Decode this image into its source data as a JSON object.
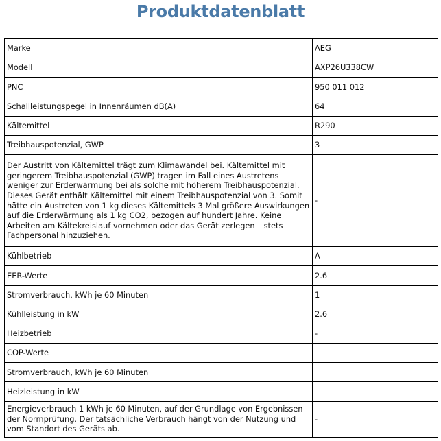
{
  "title": "Produktdatenblatt",
  "rows": [
    {
      "label": "Marke",
      "value": "AEG"
    },
    {
      "label": "Modell",
      "value": "AXP26U338CW"
    },
    {
      "label": "PNC",
      "value": "950 011 012"
    },
    {
      "label": "Schallleistungspegel in Innenräumen dB(A)",
      "value": "64"
    },
    {
      "label": "Kältemittel",
      "value": "R290"
    },
    {
      "label": "Treibhauspotenzial, GWP",
      "value": "3"
    },
    {
      "label": "Der Austritt von Kältemittel trägt zum Klimawandel bei. Kältemittel mit geringerem Treibhauspotenzial (GWP) tragen im Fall eines Austretens weniger zur Erderwärmung bei als solche mit höherem Treibhauspotenzial. Dieses Gerät enthält Kältemittel mit einem Treibhauspotenzial von 3. Somit hätte ein Austreten von 1 kg dieses Kältemittels 3 Mal größere Auswirkungen auf die Erderwärmung als 1 kg CO2, bezogen auf hundert Jahre. Keine Arbeiten am Kältekreislauf vornehmen oder das Gerät zerlegen – stets Fachpersonal hinzuziehen.",
      "value": "-"
    },
    {
      "label": "Kühlbetrieb",
      "value": "A"
    },
    {
      "label": "EER-Werte",
      "value": "2.6"
    },
    {
      "label": "Stromverbrauch, kWh je 60 Minuten",
      "value": "1"
    },
    {
      "label": "Kühlleistung in kW",
      "value": "2.6"
    },
    {
      "label": "Heizbetrieb",
      "value": "-"
    },
    {
      "label": "COP-Werte",
      "value": ""
    },
    {
      "label": "Stromverbrauch, kWh je 60 Minuten",
      "value": ""
    },
    {
      "label": "Heizleistung in kW",
      "value": ""
    },
    {
      "label": "Energieverbrauch 1 kWh je 60 Minuten, auf der Grundlage von Ergebnissen der Normprüfung. Der tatsächliche Verbrauch hängt von der Nutzung und vom Standort des Geräts ab.",
      "value": "-"
    }
  ]
}
